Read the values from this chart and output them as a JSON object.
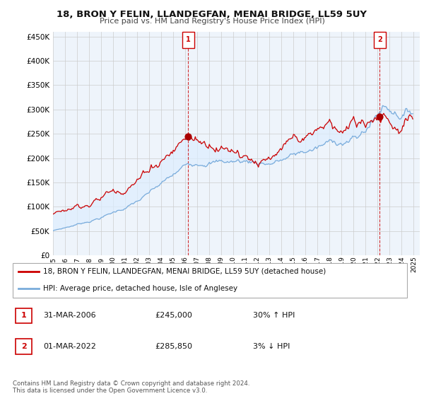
{
  "title": "18, BRON Y FELIN, LLANDEGFAN, MENAI BRIDGE, LL59 5UY",
  "subtitle": "Price paid vs. HM Land Registry's House Price Index (HPI)",
  "property_label": "18, BRON Y FELIN, LLANDEGFAN, MENAI BRIDGE, LL59 5UY (detached house)",
  "hpi_label": "HPI: Average price, detached house, Isle of Anglesey",
  "transaction1": {
    "num": "1",
    "date": "31-MAR-2006",
    "price": "£245,000",
    "change": "30% ↑ HPI"
  },
  "transaction2": {
    "num": "2",
    "date": "01-MAR-2022",
    "price": "£285,850",
    "change": "3% ↓ HPI"
  },
  "footer": "Contains HM Land Registry data © Crown copyright and database right 2024.\nThis data is licensed under the Open Government Licence v3.0.",
  "property_color": "#cc0000",
  "hpi_color": "#7aacdb",
  "fill_color": "#ddeeff",
  "background_color": "#ffffff",
  "grid_color": "#cccccc",
  "ylim": [
    0,
    460000
  ],
  "yticks": [
    0,
    50000,
    100000,
    150000,
    200000,
    250000,
    300000,
    350000,
    400000,
    450000
  ]
}
